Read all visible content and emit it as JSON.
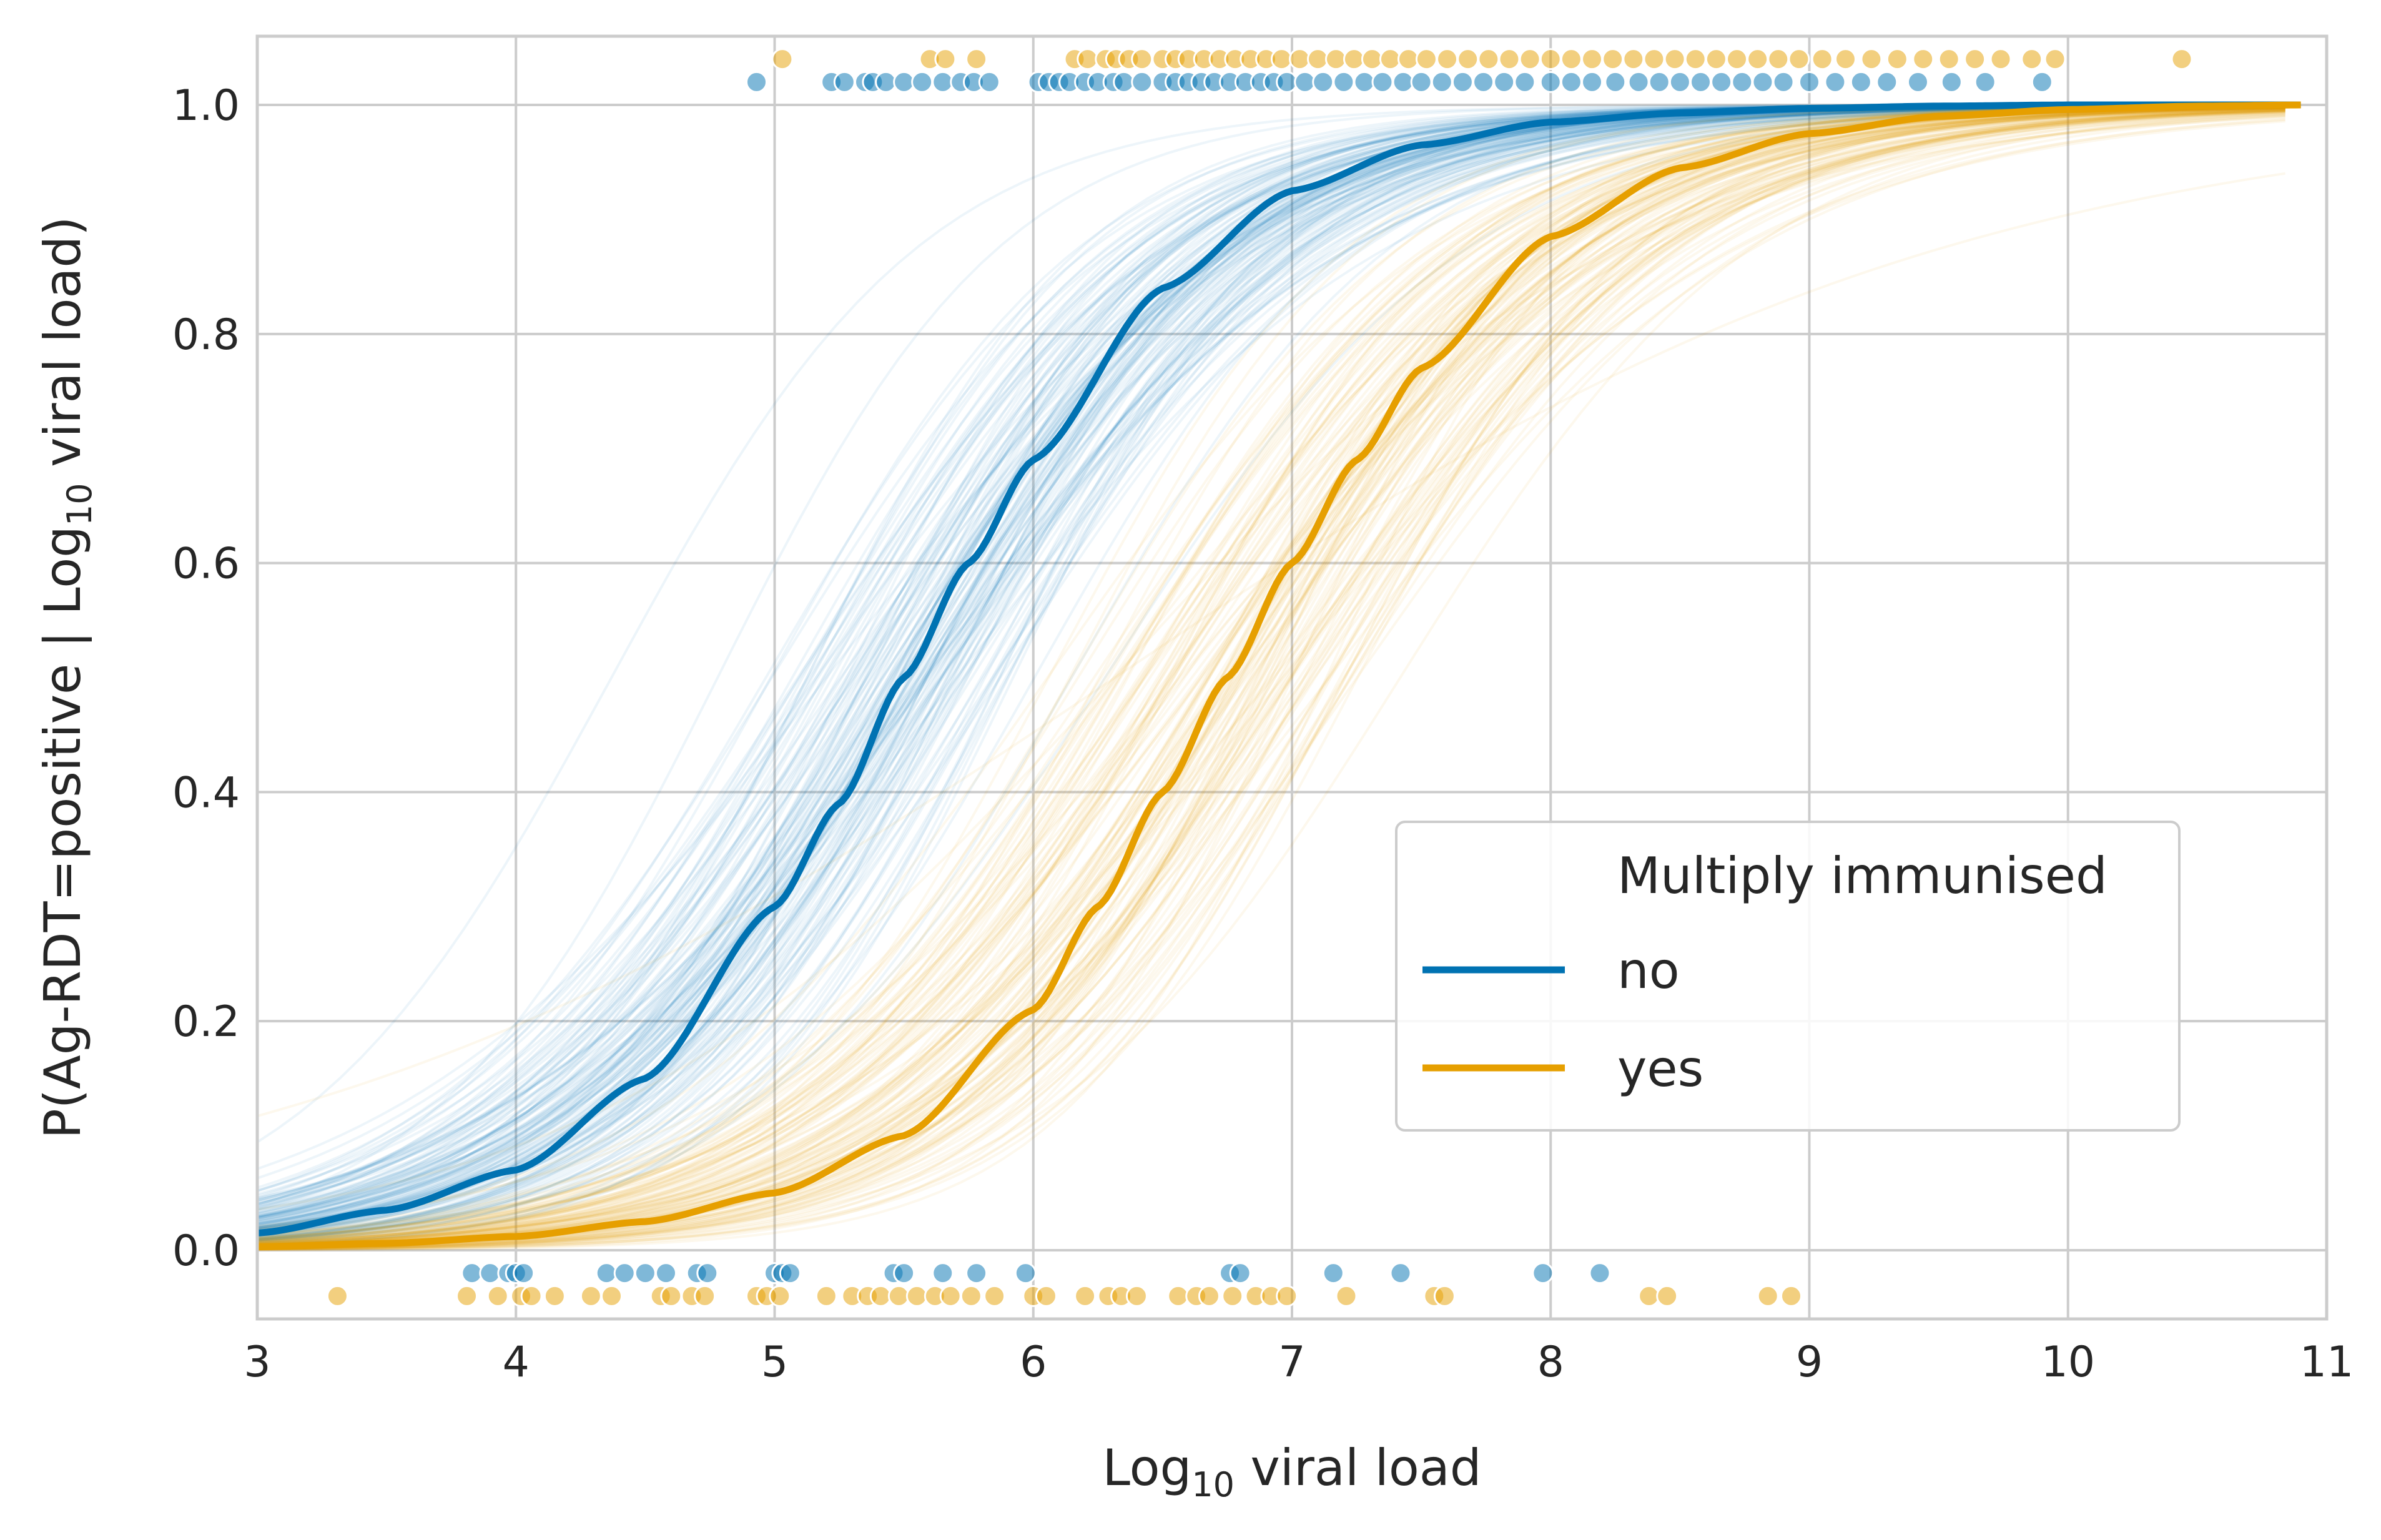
{
  "chart_data": {
    "type": "line",
    "title": "",
    "xlabel": {
      "prefix": "Log",
      "sub": "10",
      "suffix": " viral load"
    },
    "ylabel": {
      "prefix": "P(Ag-RDT=positive | Log",
      "sub": "10",
      "suffix": " viral load)"
    },
    "xlim": [
      3,
      11
    ],
    "ylim": [
      -0.06,
      1.06
    ],
    "xticks": [
      3,
      4,
      5,
      6,
      7,
      8,
      9,
      10,
      11
    ],
    "yticks": [
      0.0,
      0.2,
      0.4,
      0.6,
      0.8,
      1.0
    ],
    "xtick_labels": [
      "3",
      "4",
      "5",
      "6",
      "7",
      "8",
      "9",
      "10",
      "11"
    ],
    "ytick_labels": [
      "0.0",
      "0.2",
      "0.4",
      "0.6",
      "0.8",
      "1.0"
    ],
    "grid": true,
    "legend": {
      "title": "Multiply immunised",
      "placement": "lower-right",
      "entries": [
        "no",
        "yes"
      ]
    },
    "series": [
      {
        "name": "no",
        "color": "#0072b2",
        "curve": {
          "x": [
            3.0,
            3.5,
            4.0,
            4.5,
            5.0,
            5.25,
            5.5,
            5.75,
            6.0,
            6.5,
            7.0,
            7.5,
            8.0,
            8.5,
            9.0,
            9.5,
            10.0,
            10.5,
            10.9
          ],
          "y": [
            0.015,
            0.035,
            0.07,
            0.15,
            0.3,
            0.39,
            0.5,
            0.6,
            0.69,
            0.84,
            0.925,
            0.965,
            0.985,
            0.993,
            0.997,
            0.999,
            1.0,
            1.0,
            1.0
          ]
        },
        "positive_points_x": [
          4.93,
          5.22,
          5.27,
          5.35,
          5.38,
          5.43,
          5.5,
          5.57,
          5.65,
          5.72,
          5.77,
          5.83,
          6.02,
          6.06,
          6.1,
          6.14,
          6.2,
          6.25,
          6.31,
          6.35,
          6.42,
          6.5,
          6.55,
          6.6,
          6.65,
          6.7,
          6.76,
          6.82,
          6.88,
          6.93,
          6.98,
          7.05,
          7.12,
          7.2,
          7.28,
          7.35,
          7.43,
          7.5,
          7.58,
          7.66,
          7.74,
          7.82,
          7.9,
          8.0,
          8.08,
          8.16,
          8.25,
          8.34,
          8.42,
          8.5,
          8.58,
          8.66,
          8.74,
          8.82,
          8.9,
          9.0,
          9.1,
          9.2,
          9.3,
          9.42,
          9.55,
          9.68,
          9.9
        ],
        "negative_points_x": [
          3.83,
          3.9,
          3.97,
          4.0,
          4.03,
          4.35,
          4.42,
          4.5,
          4.58,
          4.7,
          4.74,
          5.0,
          5.03,
          5.06,
          5.46,
          5.5,
          5.65,
          5.78,
          5.97,
          6.76,
          6.8,
          7.16,
          7.42,
          7.97,
          8.19
        ]
      },
      {
        "name": "yes",
        "color": "#e69f00",
        "curve": {
          "x": [
            3.0,
            3.5,
            4.0,
            4.5,
            5.0,
            5.5,
            6.0,
            6.25,
            6.5,
            6.75,
            7.0,
            7.25,
            7.5,
            8.0,
            8.5,
            9.0,
            9.5,
            10.0,
            10.5,
            10.9
          ],
          "y": [
            0.003,
            0.006,
            0.012,
            0.025,
            0.05,
            0.1,
            0.21,
            0.3,
            0.4,
            0.5,
            0.6,
            0.69,
            0.77,
            0.885,
            0.945,
            0.975,
            0.99,
            0.996,
            0.999,
            1.0
          ]
        },
        "positive_points_x": [
          5.03,
          5.6,
          5.66,
          5.78,
          6.16,
          6.21,
          6.28,
          6.32,
          6.37,
          6.42,
          6.5,
          6.55,
          6.6,
          6.66,
          6.72,
          6.78,
          6.84,
          6.9,
          6.96,
          7.03,
          7.1,
          7.17,
          7.24,
          7.31,
          7.38,
          7.45,
          7.52,
          7.6,
          7.68,
          7.76,
          7.84,
          7.92,
          8.0,
          8.08,
          8.16,
          8.24,
          8.32,
          8.4,
          8.48,
          8.56,
          8.64,
          8.72,
          8.8,
          8.88,
          8.96,
          9.05,
          9.14,
          9.24,
          9.34,
          9.44,
          9.54,
          9.64,
          9.74,
          9.86,
          9.95,
          10.44
        ],
        "negative_points_x": [
          3.31,
          3.81,
          3.93,
          4.02,
          4.06,
          4.15,
          4.29,
          4.37,
          4.56,
          4.6,
          4.68,
          4.73,
          4.93,
          4.97,
          5.02,
          5.2,
          5.3,
          5.36,
          5.41,
          5.48,
          5.55,
          5.62,
          5.68,
          5.76,
          5.85,
          6.0,
          6.05,
          6.2,
          6.29,
          6.34,
          6.4,
          6.56,
          6.63,
          6.68,
          6.77,
          6.86,
          6.92,
          6.98,
          7.21,
          7.55,
          7.59,
          8.38,
          8.45,
          8.84,
          8.93
        ]
      }
    ]
  }
}
